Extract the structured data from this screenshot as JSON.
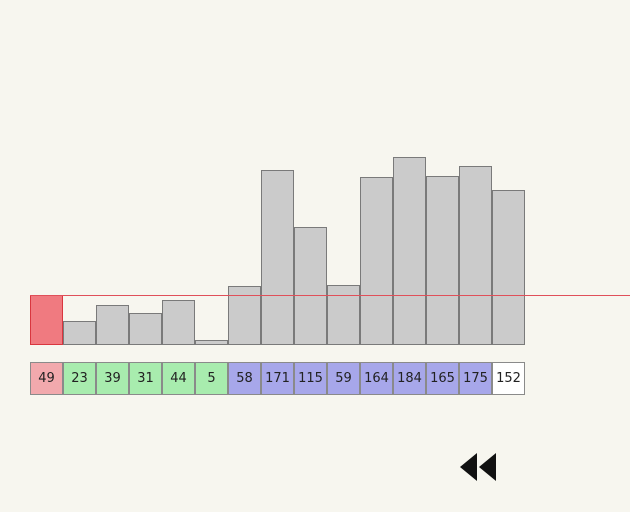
{
  "array": {
    "values": [
      49,
      23,
      39,
      31,
      44,
      5,
      58,
      171,
      115,
      59,
      164,
      184,
      165,
      175,
      152
    ],
    "states": [
      "pivot",
      "less",
      "less",
      "less",
      "less",
      "less",
      "greater",
      "greater",
      "greater",
      "greater",
      "greater",
      "greater",
      "greater",
      "greater",
      "unsorted"
    ]
  },
  "colors": {
    "pivot_bar": "#f07a80",
    "pivot_cell": "#f2a9ad",
    "less_cell": "#a8ecae",
    "greater_cell": "#a7a7ea",
    "unsorted_cell": "#ffffff",
    "bar": "#cbcbcb",
    "pivot_line": "#e0505a"
  },
  "controls": {
    "rewind_icon": "fast-rewind-icon"
  }
}
